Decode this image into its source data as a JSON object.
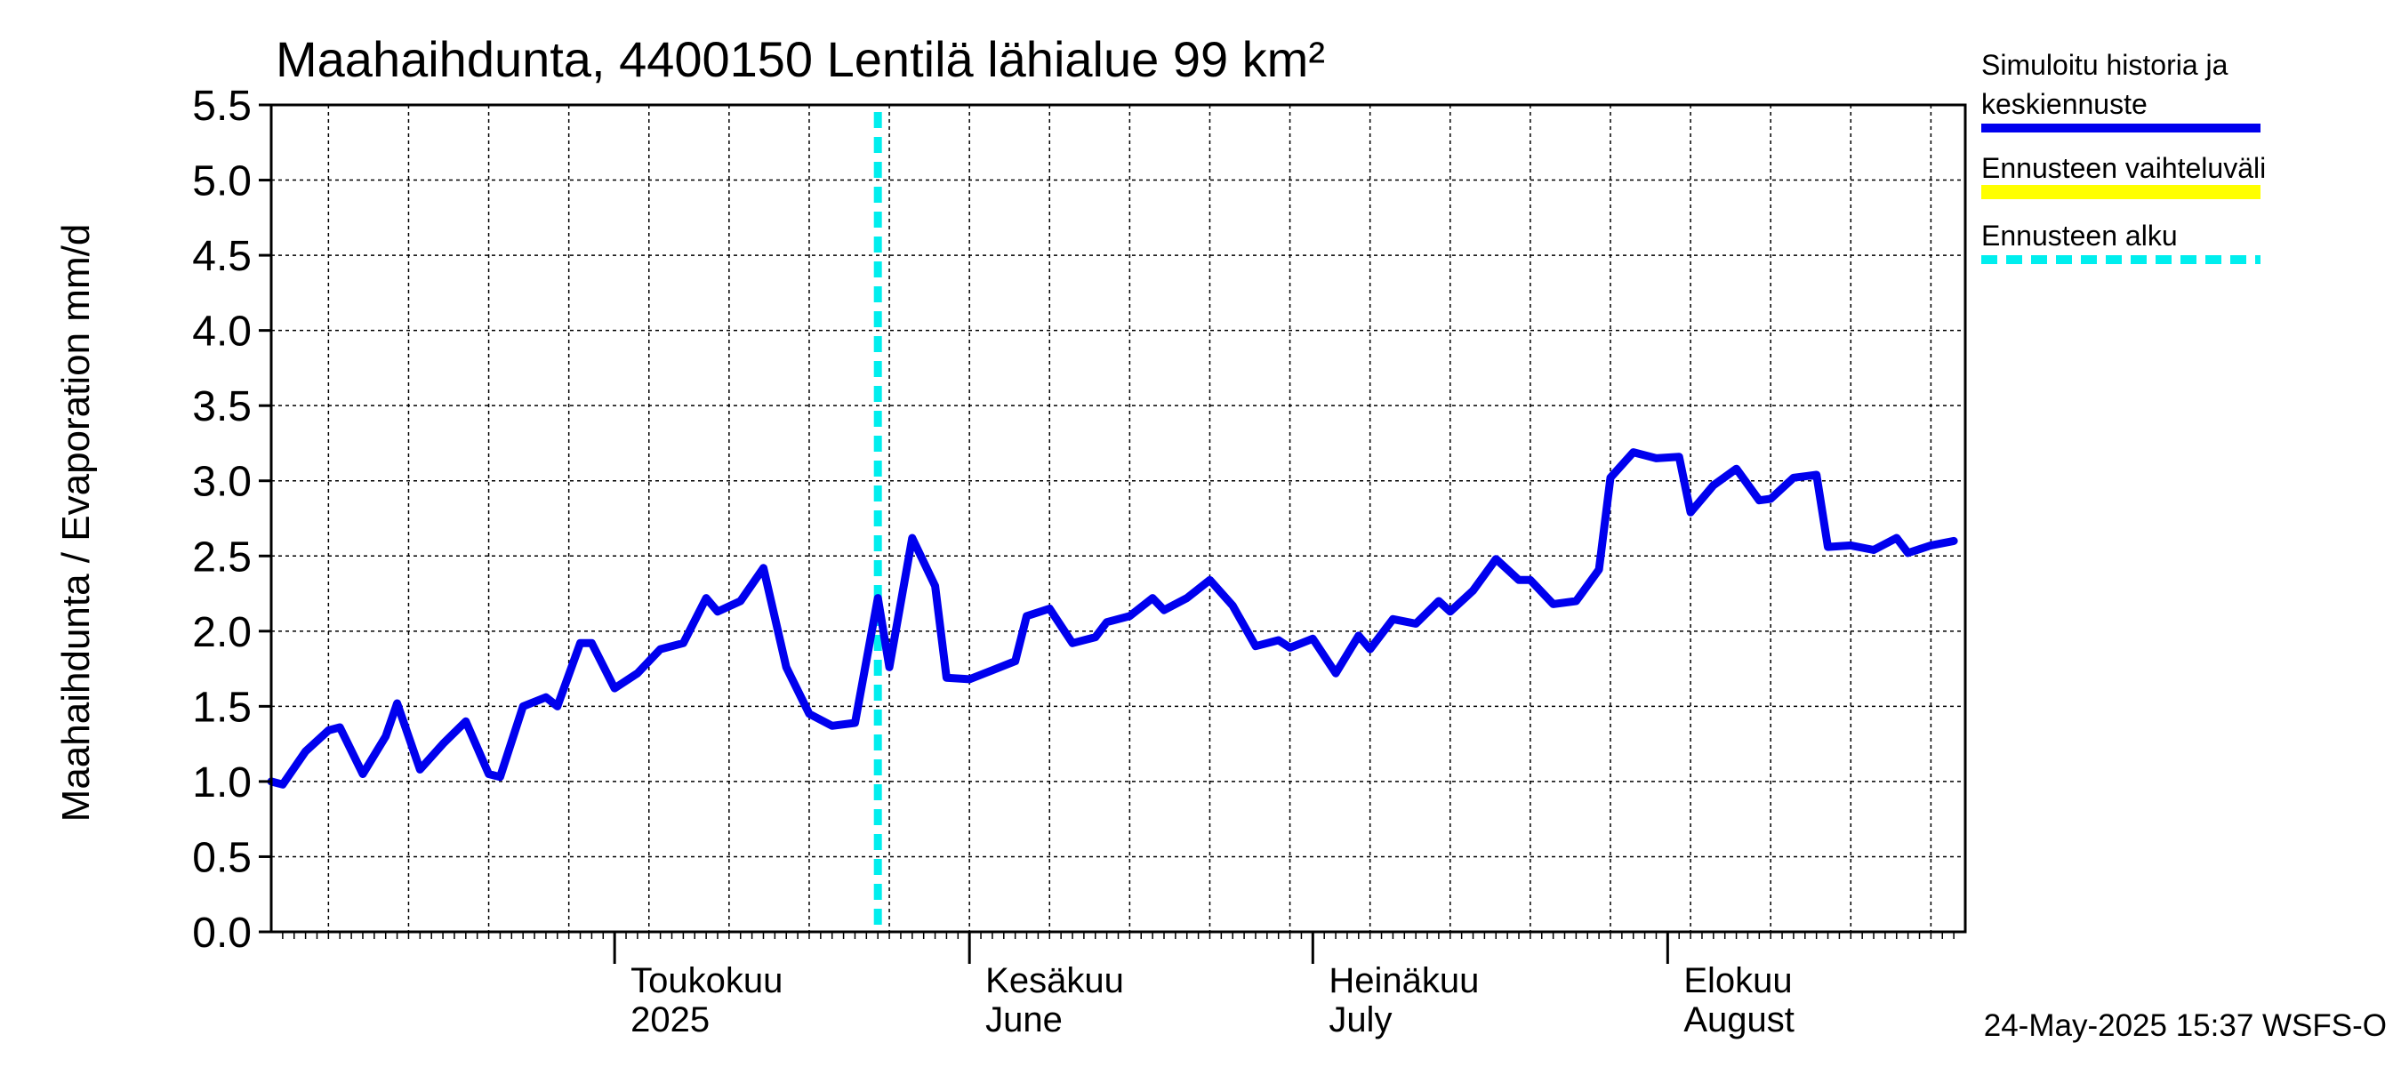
{
  "chart_data": {
    "type": "line",
    "title": "Maahaihdunta, 4400150 Lentilä lähialue 99 km²",
    "ylabel": "Maahaihdunta / Evaporation   mm/d",
    "ylim": [
      0,
      5.5
    ],
    "yticks": [
      0.0,
      0.5,
      1.0,
      1.5,
      2.0,
      2.5,
      3.0,
      3.5,
      4.0,
      4.5,
      5.0,
      5.5
    ],
    "ytick_labels": [
      "0.0",
      "0.5",
      "1.0",
      "1.5",
      "2.0",
      "2.5",
      "3.0",
      "3.5",
      "4.0",
      "4.5",
      "5.0",
      "5.5"
    ],
    "x_start": "2025-04-01",
    "x_end": "2025-08-27",
    "grid": true,
    "month_labels": [
      {
        "date": "2025-05-01",
        "line1": "Toukokuu",
        "line2": "2025"
      },
      {
        "date": "2025-06-01",
        "line1": "Kesäkuu",
        "line2": "June"
      },
      {
        "date": "2025-07-01",
        "line1": "Heinäkuu",
        "line2": "July"
      },
      {
        "date": "2025-08-01",
        "line1": "Elokuu",
        "line2": "August"
      }
    ],
    "forecast_start": "2025-05-24",
    "legend_placement": "right",
    "legend": [
      {
        "label": "Simuloitu historia ja",
        "label2": "keskiennuste",
        "color": "#0000ee",
        "style": "solid"
      },
      {
        "label": "Ennusteen vaihteluväli",
        "label2": "",
        "color": "#ffff00",
        "style": "solid"
      },
      {
        "label": "Ennusteen alku",
        "label2": "",
        "color": "#00eeee",
        "style": "dashed"
      }
    ],
    "timestamp": "24-May-2025 15:37 WSFS-O",
    "series": [
      {
        "name": "Simuloitu historia ja keskiennuste",
        "color": "#0000ee",
        "points": [
          [
            "2025-04-01",
            1.0
          ],
          [
            "2025-04-02",
            0.98
          ],
          [
            "2025-04-04",
            1.2
          ],
          [
            "2025-04-06",
            1.34
          ],
          [
            "2025-04-07",
            1.36
          ],
          [
            "2025-04-09",
            1.05
          ],
          [
            "2025-04-11",
            1.3
          ],
          [
            "2025-04-12",
            1.52
          ],
          [
            "2025-04-14",
            1.08
          ],
          [
            "2025-04-16",
            1.25
          ],
          [
            "2025-04-18",
            1.4
          ],
          [
            "2025-04-20",
            1.05
          ],
          [
            "2025-04-21",
            1.03
          ],
          [
            "2025-04-23",
            1.5
          ],
          [
            "2025-04-25",
            1.56
          ],
          [
            "2025-04-26",
            1.5
          ],
          [
            "2025-04-28",
            1.92
          ],
          [
            "2025-04-29",
            1.92
          ],
          [
            "2025-05-01",
            1.62
          ],
          [
            "2025-05-03",
            1.72
          ],
          [
            "2025-05-05",
            1.88
          ],
          [
            "2025-05-07",
            1.92
          ],
          [
            "2025-05-09",
            2.22
          ],
          [
            "2025-05-10",
            2.13
          ],
          [
            "2025-05-12",
            2.2
          ],
          [
            "2025-05-14",
            2.42
          ],
          [
            "2025-05-16",
            1.76
          ],
          [
            "2025-05-18",
            1.45
          ],
          [
            "2025-05-20",
            1.37
          ],
          [
            "2025-05-22",
            1.39
          ],
          [
            "2025-05-24",
            2.22
          ],
          [
            "2025-05-25",
            1.76
          ],
          [
            "2025-05-27",
            2.62
          ],
          [
            "2025-05-29",
            2.3
          ],
          [
            "2025-05-30",
            1.69
          ],
          [
            "2025-06-01",
            1.68
          ],
          [
            "2025-06-03",
            1.74
          ],
          [
            "2025-06-05",
            1.8
          ],
          [
            "2025-06-06",
            2.1
          ],
          [
            "2025-06-08",
            2.15
          ],
          [
            "2025-06-10",
            1.92
          ],
          [
            "2025-06-12",
            1.96
          ],
          [
            "2025-06-13",
            2.06
          ],
          [
            "2025-06-15",
            2.1
          ],
          [
            "2025-06-17",
            2.22
          ],
          [
            "2025-06-18",
            2.14
          ],
          [
            "2025-06-20",
            2.22
          ],
          [
            "2025-06-22",
            2.34
          ],
          [
            "2025-06-24",
            2.17
          ],
          [
            "2025-06-26",
            1.9
          ],
          [
            "2025-06-28",
            1.94
          ],
          [
            "2025-06-29",
            1.89
          ],
          [
            "2025-07-01",
            1.95
          ],
          [
            "2025-07-03",
            1.72
          ],
          [
            "2025-07-05",
            1.97
          ],
          [
            "2025-07-06",
            1.88
          ],
          [
            "2025-07-08",
            2.08
          ],
          [
            "2025-07-10",
            2.05
          ],
          [
            "2025-07-12",
            2.2
          ],
          [
            "2025-07-13",
            2.13
          ],
          [
            "2025-07-15",
            2.27
          ],
          [
            "2025-07-17",
            2.48
          ],
          [
            "2025-07-19",
            2.34
          ],
          [
            "2025-07-20",
            2.34
          ],
          [
            "2025-07-22",
            2.18
          ],
          [
            "2025-07-24",
            2.2
          ],
          [
            "2025-07-26",
            2.41
          ],
          [
            "2025-07-27",
            3.02
          ],
          [
            "2025-07-29",
            3.19
          ],
          [
            "2025-07-31",
            3.15
          ],
          [
            "2025-08-02",
            3.16
          ],
          [
            "2025-08-03",
            2.79
          ],
          [
            "2025-08-05",
            2.97
          ],
          [
            "2025-08-07",
            3.08
          ],
          [
            "2025-08-09",
            2.87
          ],
          [
            "2025-08-10",
            2.88
          ],
          [
            "2025-08-12",
            3.02
          ],
          [
            "2025-08-14",
            3.04
          ],
          [
            "2025-08-15",
            2.56
          ],
          [
            "2025-08-17",
            2.57
          ],
          [
            "2025-08-19",
            2.54
          ],
          [
            "2025-08-21",
            2.62
          ],
          [
            "2025-08-22",
            2.52
          ],
          [
            "2025-08-24",
            2.57
          ],
          [
            "2025-08-26",
            2.6
          ]
        ]
      }
    ]
  }
}
